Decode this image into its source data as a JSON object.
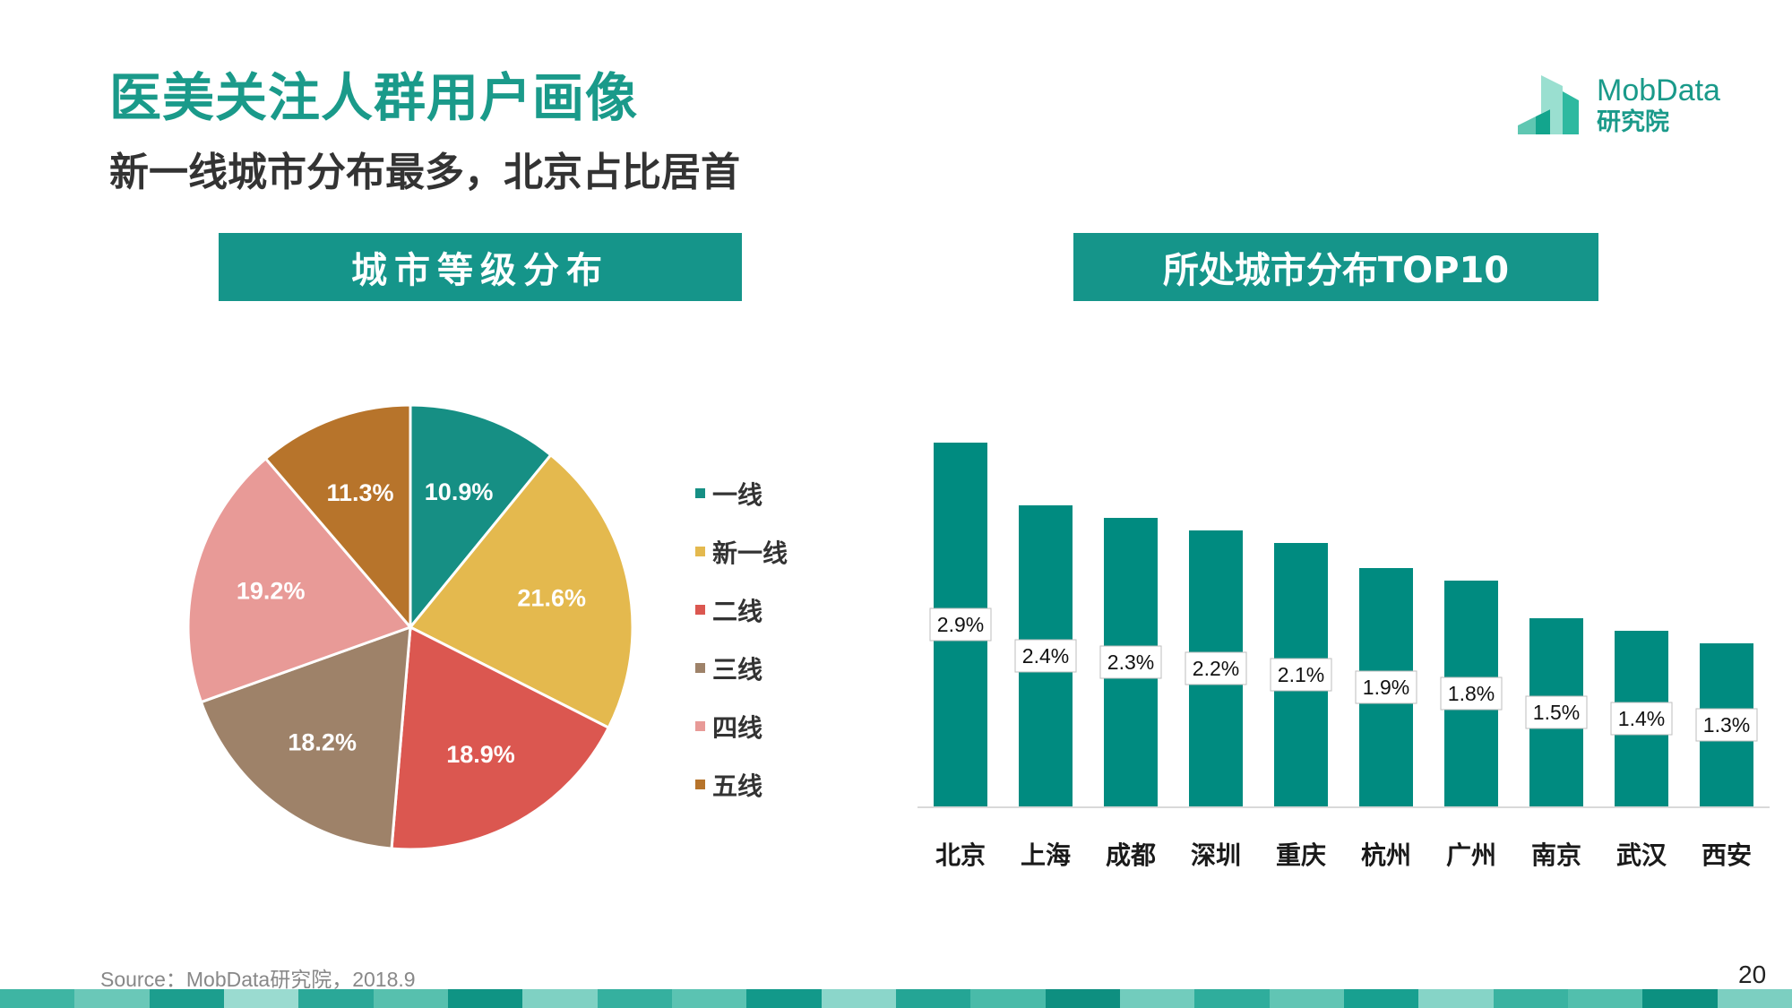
{
  "header": {
    "title": "医美关注人群用户画像",
    "subtitle": "新一线城市分布最多，北京占比居首"
  },
  "logo": {
    "name_en": "MobData",
    "name_cn": "研究院",
    "color": "#1a9a8a"
  },
  "footer": {
    "source": "Source：MobData研究院，2018.9",
    "page_number": "20"
  },
  "colors": {
    "accent": "#15958a",
    "bar": "#008b80"
  },
  "chart_data": [
    {
      "type": "pie",
      "title": "城市等级分布",
      "categories": [
        "一线",
        "新一线",
        "二线",
        "三线",
        "四线",
        "五线"
      ],
      "values": [
        10.9,
        21.6,
        18.9,
        18.2,
        19.2,
        11.3
      ],
      "labels": [
        "10.9%",
        "21.6%",
        "18.9%",
        "18.2%",
        "19.2%",
        "11.3%"
      ],
      "colors": [
        "#168f84",
        "#e4b94e",
        "#db5750",
        "#9e8269",
        "#e89a97",
        "#b7742b"
      ],
      "legend": "right"
    },
    {
      "type": "bar",
      "title": "所处城市分布TOP10",
      "categories": [
        "北京",
        "上海",
        "成都",
        "深圳",
        "重庆",
        "杭州",
        "广州",
        "南京",
        "武汉",
        "西安"
      ],
      "values": [
        2.9,
        2.4,
        2.3,
        2.2,
        2.1,
        1.9,
        1.8,
        1.5,
        1.4,
        1.3
      ],
      "labels": [
        "2.9%",
        "2.4%",
        "2.3%",
        "2.2%",
        "2.1%",
        "1.9%",
        "1.8%",
        "1.5%",
        "1.4%",
        "1.3%"
      ],
      "xlabel": "",
      "ylabel": "",
      "ylim": [
        0,
        2.9
      ],
      "grid": false
    }
  ]
}
